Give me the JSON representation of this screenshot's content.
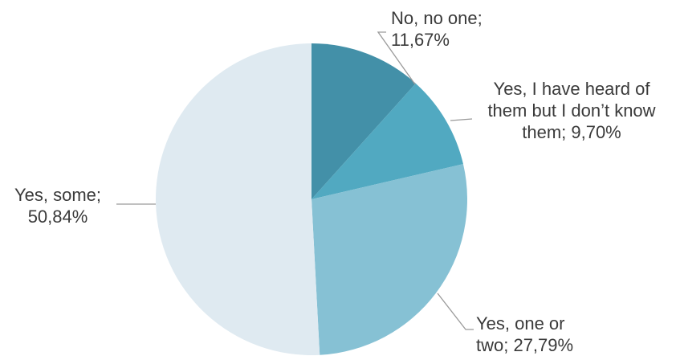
{
  "chart_data": {
    "type": "pie",
    "start_angle_deg": 0,
    "direction": "clockwise",
    "slices": [
      {
        "label_lines": [
          "No, no one;",
          "11,67%"
        ],
        "value": 11.67,
        "color": "#4390a8"
      },
      {
        "label_lines": [
          "Yes, I have heard of",
          "them but I don’t know",
          "them; 9,70%"
        ],
        "value": 9.7,
        "color": "#51a9c1"
      },
      {
        "label_lines": [
          "Yes, one or",
          "two; 27,79%"
        ],
        "value": 27.79,
        "color": "#86c1d4"
      },
      {
        "label_lines": [
          "Yes, some;",
          "50,84%"
        ],
        "value": 50.84,
        "color": "#dfeaf1"
      }
    ]
  }
}
